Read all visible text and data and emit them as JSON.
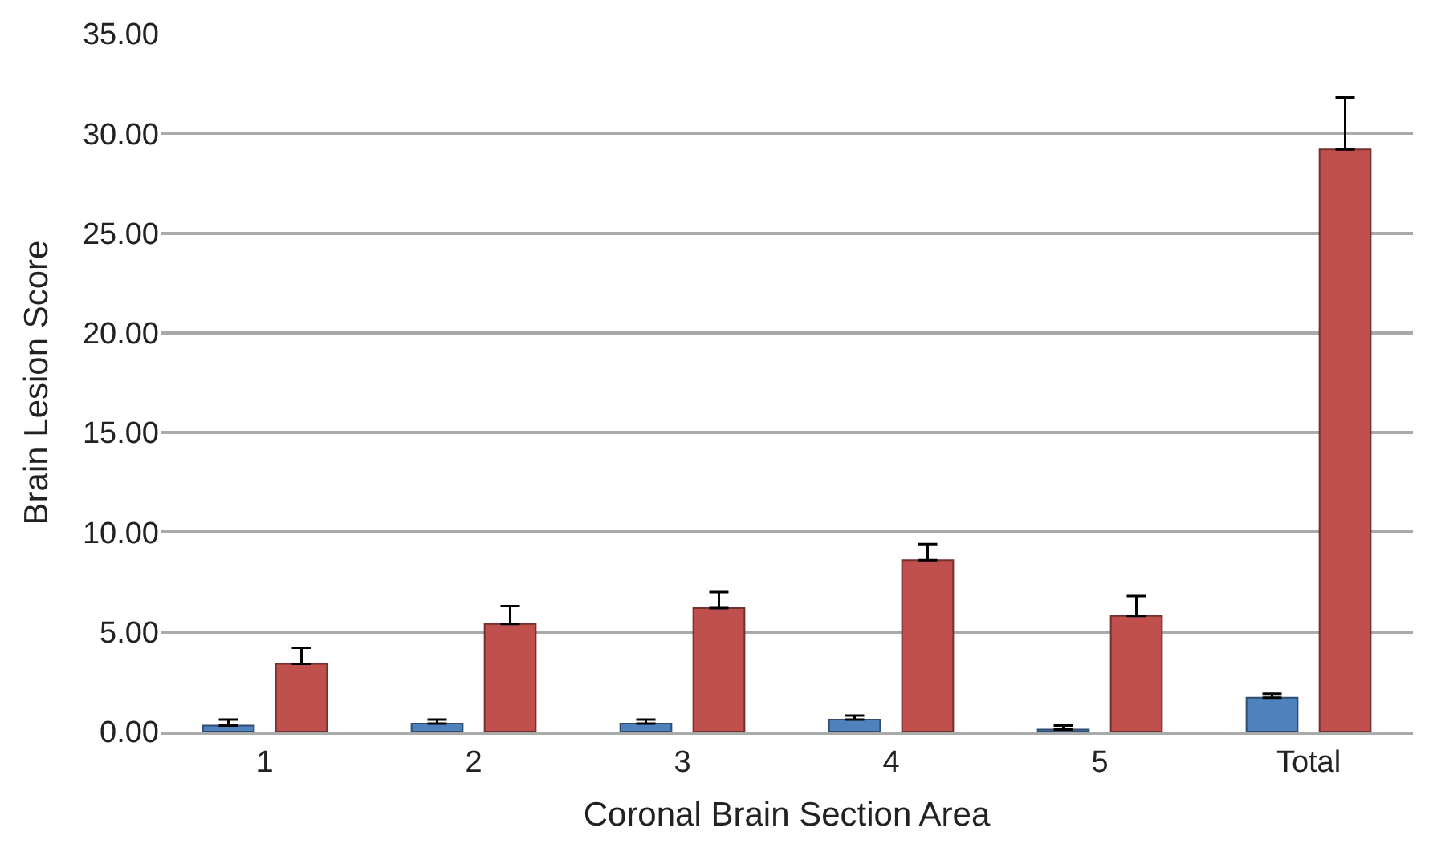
{
  "chart_data": {
    "type": "bar",
    "xlabel": "Coronal Brain Section Area",
    "ylabel": "Brain Lesion Score",
    "categories": [
      "1",
      "2",
      "3",
      "4",
      "5",
      "Total"
    ],
    "series": [
      {
        "color": "#4f81bd",
        "values": [
          0.3,
          0.4,
          0.4,
          0.6,
          0.1,
          1.7
        ],
        "errors": [
          [
            0.3,
            0.6
          ],
          [
            0.4,
            0.6
          ],
          [
            0.4,
            0.6
          ],
          [
            0.6,
            0.8
          ],
          [
            0.1,
            0.3
          ],
          [
            1.7,
            1.9
          ]
        ]
      },
      {
        "color": "#c0504d",
        "values": [
          3.4,
          5.4,
          6.2,
          8.6,
          5.8,
          29.2
        ],
        "errors": [
          [
            3.4,
            4.2
          ],
          [
            5.4,
            6.3
          ],
          [
            6.2,
            7.0
          ],
          [
            8.6,
            9.4
          ],
          [
            5.8,
            6.8
          ],
          [
            29.2,
            31.8
          ]
        ]
      }
    ],
    "ylim": [
      0,
      35
    ],
    "yticks": [
      {
        "value": 0,
        "label": "0.00"
      },
      {
        "value": 5,
        "label": "5.00"
      },
      {
        "value": 10,
        "label": "10.00"
      },
      {
        "value": 15,
        "label": "15.00"
      },
      {
        "value": 20,
        "label": "20.00"
      },
      {
        "value": 25,
        "label": "25.00"
      },
      {
        "value": 30,
        "label": "30.00"
      },
      {
        "value": 35,
        "label": "35.00"
      }
    ],
    "grid": "y"
  }
}
